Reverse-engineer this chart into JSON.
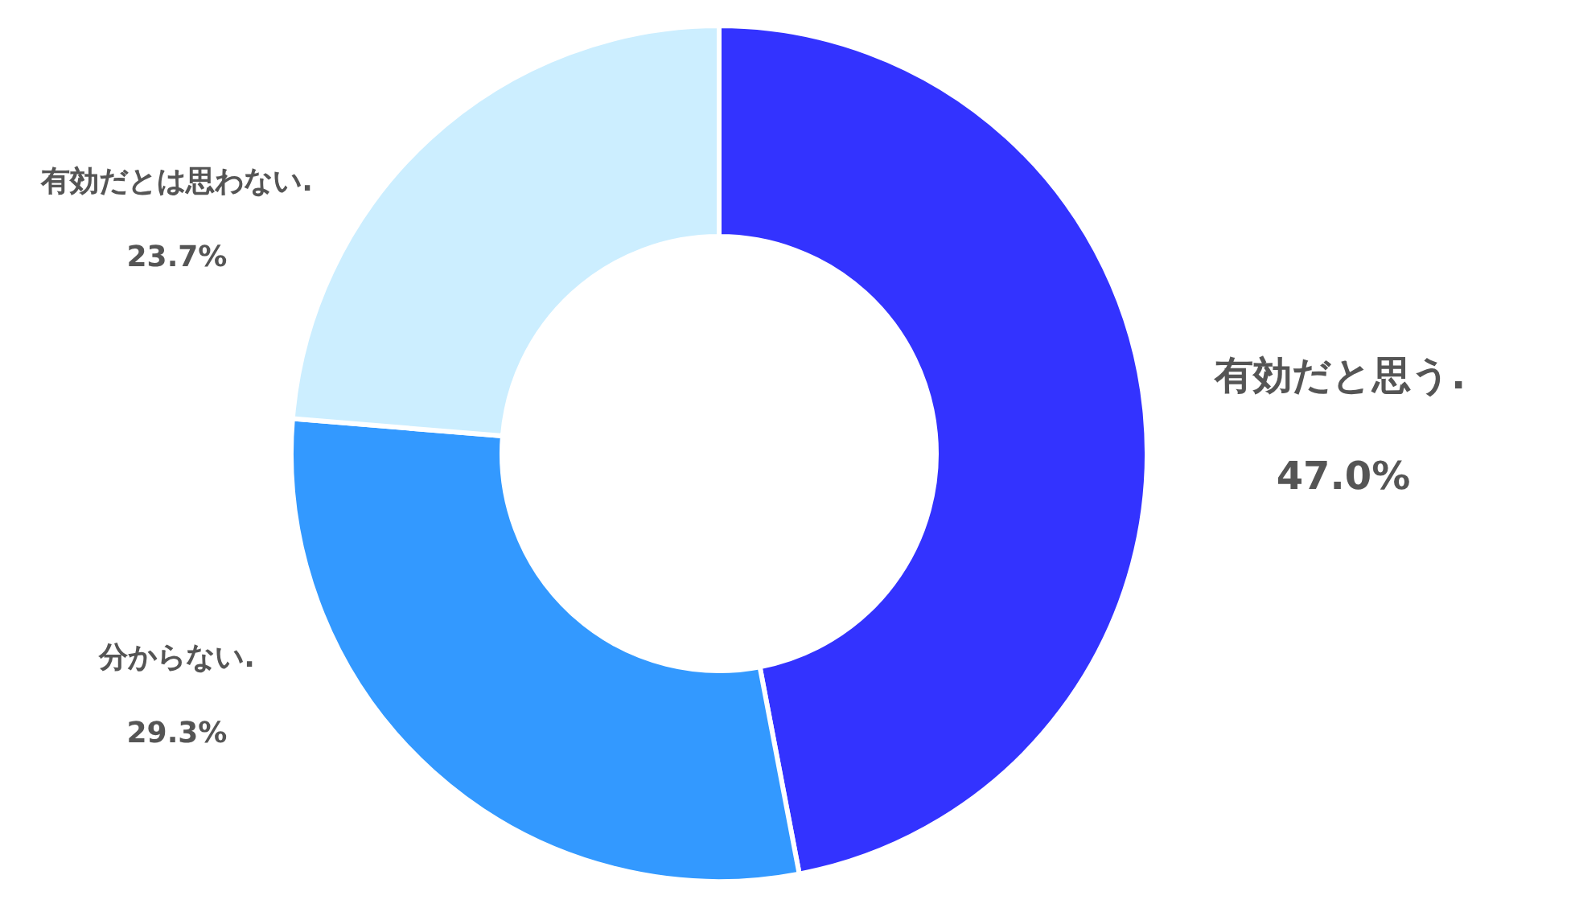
{
  "chart_data": {
    "type": "donut",
    "categories": [
      "有効だと思う.",
      "分からない.",
      "有効だとは思わない."
    ],
    "values": [
      47.0,
      29.3,
      23.7
    ],
    "colors": [
      "#3333ff",
      "#3399ff",
      "#cceeff"
    ],
    "value_labels": [
      "47.0%",
      "29.3%",
      "23.7%"
    ],
    "legend": false
  }
}
